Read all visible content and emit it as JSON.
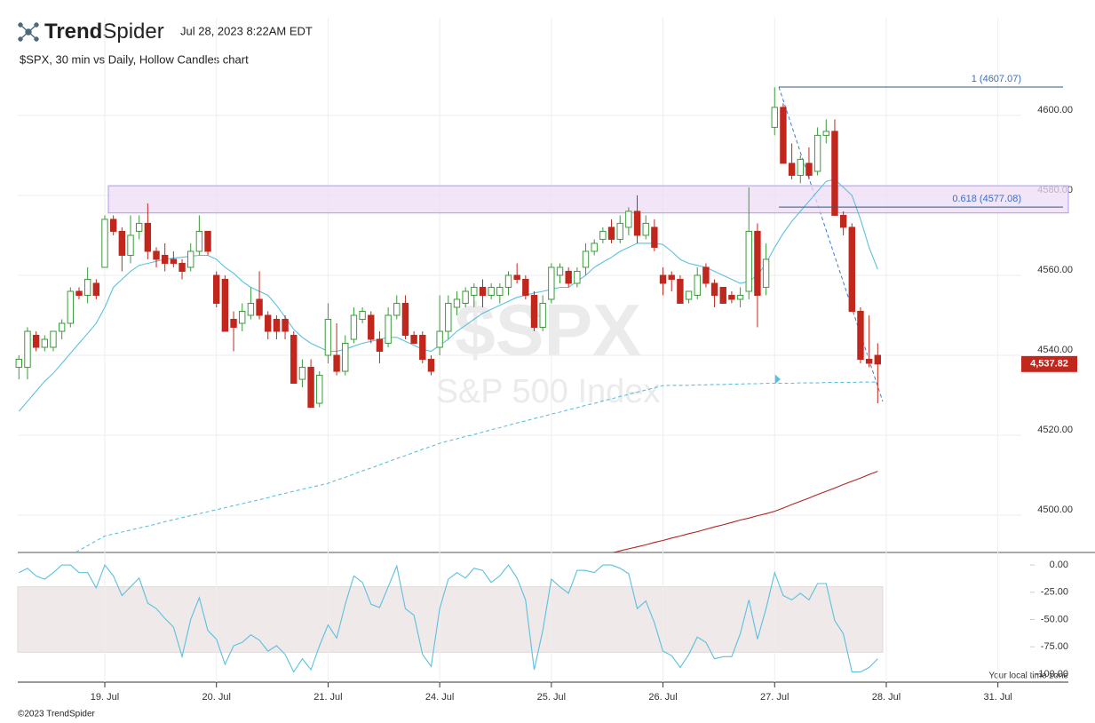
{
  "header": {
    "brand_bold": "Trend",
    "brand_light": "Spider",
    "timestamp": "Jul 28, 2023 8:22AM EDT",
    "subtitle": "$SPX, 30 min vs Daily, Hollow Candles chart"
  },
  "footer": {
    "copyright": "©2023 TrendSpider",
    "timezone_note": "Your local time zone"
  },
  "chart_data": [
    {
      "type": "candlestick",
      "ylim": [
        4490.7,
        4624.4
      ],
      "yticks": [
        {
          "value": 4500,
          "label": "4500.00"
        },
        {
          "value": 4520,
          "label": "4520.00"
        },
        {
          "value": 4540,
          "label": "4540.00"
        },
        {
          "value": 4560,
          "label": "4560.00"
        },
        {
          "value": 4580,
          "label": "4580.00"
        },
        {
          "value": 4600,
          "label": "4600.00"
        }
      ],
      "grid": true,
      "up_color": "#3b9b3b",
      "down_color": "#c1271d",
      "open": [
        4537,
        4537,
        4545,
        4542,
        4542,
        4546,
        4548,
        4556,
        4555,
        4558,
        4562,
        4574,
        4571,
        4565,
        4571,
        4573,
        4566,
        4565,
        4564,
        4563,
        4562,
        4566,
        4571,
        4560,
        4559,
        4549,
        4548,
        4550,
        4554,
        4550,
        4549,
        4549,
        4545,
        4534,
        4537,
        4528,
        4540,
        4540,
        4536,
        4544,
        4549,
        4550,
        4544,
        4543,
        4550,
        4553,
        4545,
        4545,
        4539,
        4542,
        4546,
        4552,
        4553,
        4555,
        4557,
        4555,
        4555,
        4557,
        4560,
        4559,
        4555,
        4547,
        4554,
        4560,
        4561,
        4558,
        4562,
        4566,
        4569,
        4572,
        4569,
        4572,
        4576,
        4570,
        4572,
        4560,
        4560,
        4559,
        4554,
        4555,
        4562,
        4558,
        4557,
        4555,
        4554,
        4556,
        4571,
        4557,
        4597,
        4602,
        4588,
        4585,
        4588,
        4586,
        4595,
        4596,
        4575,
        4572,
        4551,
        4539,
        4540,
        null,
        null,
        null,
        null,
        null,
        null,
        null,
        null,
        null,
        null,
        null,
        null,
        null,
        null,
        null,
        null,
        null,
        null,
        null
      ],
      "high": [
        4540,
        4547,
        4546,
        4545,
        4546,
        4549,
        4557,
        4557,
        4562,
        4559,
        4575,
        4575,
        4572,
        4575,
        4575,
        4578,
        4567,
        4568,
        4566,
        4564,
        4568,
        4575,
        4571,
        4561,
        4560,
        4551,
        4553,
        4557,
        4561,
        4551,
        4550,
        4550,
        4546,
        4539,
        4539,
        4536,
        4553,
        4548,
        4545,
        4552,
        4552,
        4551,
        4546,
        4552,
        4555,
        4555,
        4546,
        4546,
        4540,
        4555,
        4555,
        4556,
        4557,
        4558,
        4559,
        4558,
        4558,
        4561,
        4563,
        4560,
        4556,
        4555,
        4563,
        4563,
        4562,
        4562,
        4568,
        4569,
        4572,
        4574,
        4575,
        4577,
        4580,
        4575,
        4574,
        4562,
        4561,
        4560,
        4556,
        4562,
        4563,
        4559,
        4557,
        4556,
        4557,
        4582,
        4573,
        4568,
        4607,
        4603,
        4593,
        4590,
        4592,
        4597,
        4599,
        4599,
        4576,
        4573,
        4552,
        4550,
        4543,
        null,
        null,
        null,
        null,
        null,
        null,
        null,
        null,
        null,
        null,
        null,
        null,
        null,
        null,
        null,
        null,
        null,
        null,
        null
      ],
      "low": [
        4534,
        4534,
        4541,
        4541,
        4541,
        4544,
        4547,
        4554,
        4553,
        4554,
        4562,
        4570,
        4561,
        4563,
        4569,
        4564,
        4562,
        4561,
        4562,
        4559,
        4561,
        4565,
        4565,
        4552,
        4546,
        4541,
        4546,
        4549,
        4549,
        4544,
        4544,
        4544,
        4533,
        4532,
        4527,
        4527,
        4538,
        4535,
        4535,
        4543,
        4548,
        4543,
        4538,
        4542,
        4549,
        4544,
        4543,
        4538,
        4535,
        4540,
        4544,
        4550,
        4552,
        4552,
        4552,
        4554,
        4553,
        4555,
        4558,
        4554,
        4546,
        4546,
        4553,
        4558,
        4557,
        4557,
        4560,
        4565,
        4568,
        4568,
        4568,
        4570,
        4568,
        4569,
        4566,
        4555,
        4556,
        4553,
        4553,
        4554,
        4557,
        4552,
        4553,
        4553,
        4552,
        4554,
        4547,
        4555,
        4595,
        4588,
        4584,
        4583,
        4584,
        4585,
        4593,
        4575,
        4570,
        4551,
        4538,
        4537,
        4528,
        null,
        null,
        null,
        null,
        null,
        null,
        null,
        null,
        null,
        null,
        null,
        null,
        null,
        null,
        null,
        null,
        null,
        null,
        null
      ],
      "close": [
        4539,
        4546,
        4542,
        4544,
        4546,
        4548,
        4556,
        4555,
        4559,
        4555,
        4574,
        4571,
        4565,
        4570,
        4573,
        4566,
        4564,
        4563,
        4563,
        4561,
        4566,
        4571,
        4566,
        4553,
        4546,
        4547,
        4551,
        4553,
        4550,
        4546,
        4546,
        4546,
        4533,
        4537,
        4527,
        4535,
        4549,
        4536,
        4543,
        4550,
        4551,
        4544,
        4541,
        4550,
        4553,
        4545,
        4543,
        4539,
        4536,
        4546,
        4553,
        4554,
        4556,
        4557,
        4555,
        4557,
        4557,
        4560,
        4559,
        4555,
        4547,
        4553,
        4562,
        4562,
        4558,
        4561,
        4566,
        4568,
        4571,
        4569,
        4573,
        4576,
        4570,
        4573,
        4567,
        4558,
        4559,
        4553,
        4556,
        4560,
        4558,
        4555,
        4553,
        4554,
        4555,
        4571,
        4555,
        4564,
        4602,
        4588,
        4585,
        4589,
        4585,
        4595,
        4596,
        4575,
        4572,
        4551,
        4539,
        4538,
        4537.82,
        null,
        null,
        null,
        null,
        null,
        null,
        null,
        null,
        null,
        null,
        null,
        null,
        null,
        null,
        null,
        null,
        null,
        null,
        null
      ],
      "overlays": [
        {
          "color": "#5bc0de",
          "dash": false,
          "values": [
            4526,
            4528.5,
            4531,
            4533.5,
            4535.5,
            4538,
            4540.5,
            4543,
            4545.5,
            4548,
            4552,
            4557,
            4559,
            4561,
            4562.5,
            4563,
            4563.5,
            4564,
            4564.3,
            4564.5,
            4564.8,
            4565,
            4565,
            4564,
            4562,
            4560.5,
            4558.5,
            4557,
            4556,
            4555,
            4552.5,
            4549.5,
            4546.5,
            4544.5,
            4543,
            4542,
            4541,
            4541,
            4541.5,
            4542.3,
            4543,
            4543.5,
            4544,
            4544.5,
            4544.5,
            4543.5,
            4542.5,
            4541.5,
            4541,
            4542.5,
            4544,
            4546,
            4547.5,
            4549,
            4550.5,
            4551.5,
            4552.5,
            4553.5,
            4554.5,
            4555,
            4555.6,
            4556,
            4556.5,
            4557,
            4557,
            4558.5,
            4560,
            4562,
            4563.3,
            4564.5,
            4566,
            4567,
            4568,
            4568,
            4568,
            4567.7,
            4566,
            4564,
            4563,
            4562.5,
            4562,
            4561,
            4560,
            4559,
            4558,
            4558.5,
            4560,
            4563,
            4567,
            4570.5,
            4573.5,
            4576,
            4578.5,
            4581,
            4583.5,
            4584,
            4582,
            4580,
            4574,
            4567,
            4561.5,
            null,
            null,
            null,
            null,
            null,
            null,
            null,
            null,
            null,
            null,
            null,
            null,
            null,
            null,
            null,
            null,
            null,
            null,
            null
          ]
        },
        {
          "color": "#5bc0de",
          "dash": true,
          "values": [
            null,
            null,
            null,
            null,
            null,
            null,
            4490,
            4491.2,
            4492.4,
            4493.6,
            4494.8,
            4495.3,
            4495.8,
            4496.3,
            4496.8,
            4497.3,
            4497.8,
            4498.4,
            4498.9,
            4499.4,
            4499.9,
            4500.4,
            4500.9,
            4501.4,
            4501.9,
            4502.4,
            4502.9,
            4503.4,
            4503.9,
            4504.4,
            4505,
            4505.5,
            4506,
            4506.5,
            4507,
            4507.5,
            4508,
            4508.8,
            4509.5,
            4510.3,
            4511.1,
            4511.8,
            4512.6,
            4513.4,
            4514.2,
            4514.9,
            4515.7,
            4516.5,
            4517.2,
            4518,
            4518.6,
            4519.1,
            4519.7,
            4520.2,
            4520.8,
            4521.4,
            4521.9,
            4522.5,
            4523.1,
            4523.6,
            4524.2,
            4524.7,
            4525.3,
            4525.8,
            4526.4,
            4526.9,
            4527.5,
            4528,
            4528.6,
            4529.1,
            4529.7,
            4530.2,
            4530.8,
            4531.3,
            4531.9,
            4532.4,
            4532.5,
            4532.5,
            4532.5,
            4532.6,
            4532.6,
            4532.7,
            4532.7,
            4532.8,
            4532.8,
            4532.9,
            4532.9,
            4533,
            4533,
            4533,
            4533,
            4533.1,
            4533.1,
            4533.1,
            4533.2,
            4533.2,
            4533.2,
            4533.2,
            4533.3,
            4533.3,
            4533.3,
            null,
            null,
            null,
            null,
            null,
            null,
            null,
            null,
            null,
            null,
            null,
            null,
            null,
            null,
            null,
            null,
            null,
            null,
            null
          ]
        },
        {
          "color": "#b22222",
          "dash": false,
          "values": [
            null,
            null,
            null,
            null,
            null,
            null,
            null,
            null,
            null,
            null,
            null,
            null,
            null,
            null,
            null,
            null,
            null,
            null,
            null,
            null,
            null,
            null,
            null,
            null,
            null,
            null,
            null,
            null,
            null,
            null,
            null,
            null,
            null,
            null,
            null,
            null,
            null,
            null,
            null,
            null,
            null,
            null,
            null,
            null,
            null,
            null,
            null,
            null,
            null,
            null,
            null,
            null,
            null,
            null,
            null,
            null,
            null,
            null,
            null,
            null,
            null,
            null,
            null,
            null,
            null,
            null,
            null,
            null,
            4490,
            4490.5,
            4491.1,
            4491.6,
            4492.1,
            4492.6,
            4493.2,
            4493.7,
            4494.3,
            4494.8,
            4495.4,
            4495.9,
            4496.5,
            4497.1,
            4497.6,
            4498.2,
            4498.8,
            4499.3,
            4499.9,
            4500.4,
            4501,
            4501.8,
            4502.7,
            4503.5,
            4504.3,
            4505.2,
            4506,
            4506.8,
            4507.7,
            4508.5,
            4509.3,
            4510.2,
            4511,
            null,
            null,
            null,
            null,
            null,
            null,
            null,
            null,
            null,
            null,
            null,
            null,
            null,
            null,
            null,
            null,
            null,
            null,
            null
          ]
        }
      ],
      "zone": [
        4575.6,
        4582.4
      ],
      "zone_color": "#ecdcf4",
      "fib_levels": [
        {
          "value": 4607.07,
          "label": "1 (4607.07)"
        },
        {
          "value": 4577.08,
          "label": "0.618 (4577.08)"
        }
      ],
      "fib_color": "#2a5a8a",
      "last_price": {
        "value": 4537.82,
        "label": "4,537.82"
      },
      "watermark": "$SPX",
      "watermark_subtitle": "S&P 500 Index"
    },
    {
      "type": "line",
      "categories": [
        null,
        null,
        null,
        null,
        null,
        null,
        null,
        null,
        null,
        null,
        "19. Jul",
        null,
        null,
        null,
        null,
        null,
        null,
        null,
        null,
        null,
        null,
        null,
        null,
        "20. Jul",
        null,
        null,
        null,
        null,
        null,
        null,
        null,
        null,
        null,
        null,
        null,
        null,
        "21. Jul",
        null,
        null,
        null,
        null,
        null,
        null,
        null,
        null,
        null,
        null,
        null,
        null,
        "24. Jul",
        null,
        null,
        null,
        null,
        null,
        null,
        null,
        null,
        null,
        null,
        null,
        null,
        "25. Jul",
        null,
        null,
        null,
        null,
        null,
        null,
        null,
        null,
        null,
        null,
        null,
        null,
        "26. Jul",
        null,
        null,
        null,
        null,
        null,
        null,
        null,
        null,
        null,
        null,
        null,
        null,
        "27. Jul",
        null,
        null,
        null,
        null,
        null,
        null,
        null,
        null,
        null,
        null,
        null,
        null,
        "28. Jul",
        null,
        null,
        null,
        null,
        null,
        null,
        null,
        null,
        null,
        null,
        null,
        null,
        "31. Jul",
        null,
        null,
        null,
        null,
        null
      ],
      "ylim": [
        -107.4,
        7.4
      ],
      "yticks": [
        {
          "value": 0,
          "label": "0.00"
        },
        {
          "value": -25,
          "label": "-25.00"
        },
        {
          "value": -50,
          "label": "-50.00"
        },
        {
          "value": -75,
          "label": "-75.00"
        },
        {
          "value": -100,
          "label": "-100.00"
        }
      ],
      "band": [
        -80,
        -20
      ],
      "band_color": "#efe9e9",
      "series": [
        {
          "color": "#5bc0de",
          "values": [
            -7,
            -3,
            -10,
            -13,
            -7,
            0,
            0,
            -7,
            -7,
            -21,
            0,
            -10,
            -28,
            -20,
            -12,
            -35,
            -40,
            -49,
            -57,
            -84,
            -50,
            -30,
            -60,
            -68,
            -91,
            -74,
            -71,
            -64,
            -69,
            -79,
            -74,
            -82,
            -98,
            -86,
            -96,
            -74,
            -55,
            -67,
            -36,
            -10,
            -16,
            -36,
            -39,
            -20,
            -1,
            -40,
            -46,
            -82,
            -93,
            -40,
            -13,
            -7,
            -12,
            -3,
            -5,
            -16,
            -10,
            0,
            -12,
            -32,
            -96,
            -60,
            -13,
            -20,
            -26,
            -5,
            -5,
            -7,
            0,
            0,
            -3,
            -8,
            -40,
            -33,
            -53,
            -79,
            -83,
            -94,
            -82,
            -66,
            -71,
            -86,
            -84,
            -84,
            -63,
            -32,
            -68,
            -40,
            -7,
            -28,
            -32,
            -26,
            -32,
            -17,
            -17,
            -51,
            -63,
            -98,
            -98,
            -94,
            -86,
            null,
            null,
            null,
            null,
            null,
            null,
            null,
            null,
            null,
            null,
            null,
            null,
            null,
            null,
            null,
            null,
            null,
            null,
            null
          ]
        }
      ]
    }
  ]
}
